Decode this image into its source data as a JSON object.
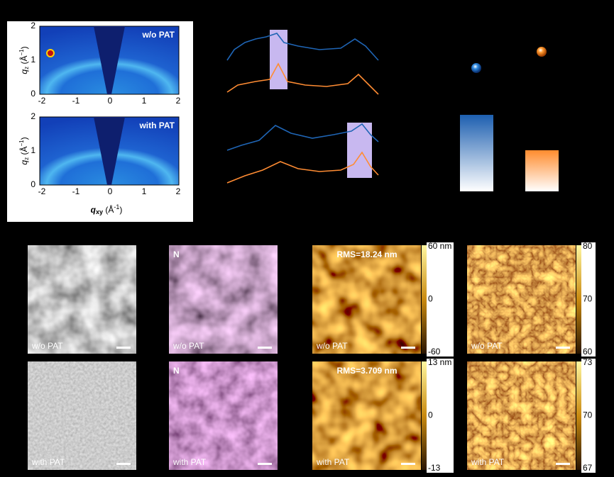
{
  "giwaxs": {
    "panels": [
      {
        "label": "w/o PAT"
      },
      {
        "label": "with PAT"
      }
    ],
    "yticks": [
      "2",
      "1",
      "0"
    ],
    "xticks": [
      "-2",
      "-1",
      "0",
      "1",
      "2"
    ],
    "y_label": [
      "q",
      "z",
      " (Å",
      "−1",
      ")"
    ],
    "x_label": [
      "q",
      "xy",
      " (Å",
      "-1",
      ")"
    ]
  },
  "micrographs": {
    "rows": [
      {
        "sem_label": "w/o PAT",
        "eds_element": "N",
        "eds_label": "w/o PAT",
        "afm_rms": "RMS=18.24 nm",
        "afm_scale": [
          "60 nm",
          "0",
          "-60"
        ],
        "afm_label": "w/o PAT",
        "phase_scale": [
          "80",
          "70",
          "60"
        ],
        "phase_label": "w/o PAT"
      },
      {
        "sem_label": "with PAT",
        "eds_element": "N",
        "eds_label": "with PAT",
        "afm_rms": "RMS=3.709 nm",
        "afm_scale": [
          "13 nm",
          "0",
          "-13"
        ],
        "afm_label": "with PAT",
        "phase_scale": [
          "73",
          "70",
          "67"
        ],
        "phase_label": "with PAT"
      }
    ]
  }
}
